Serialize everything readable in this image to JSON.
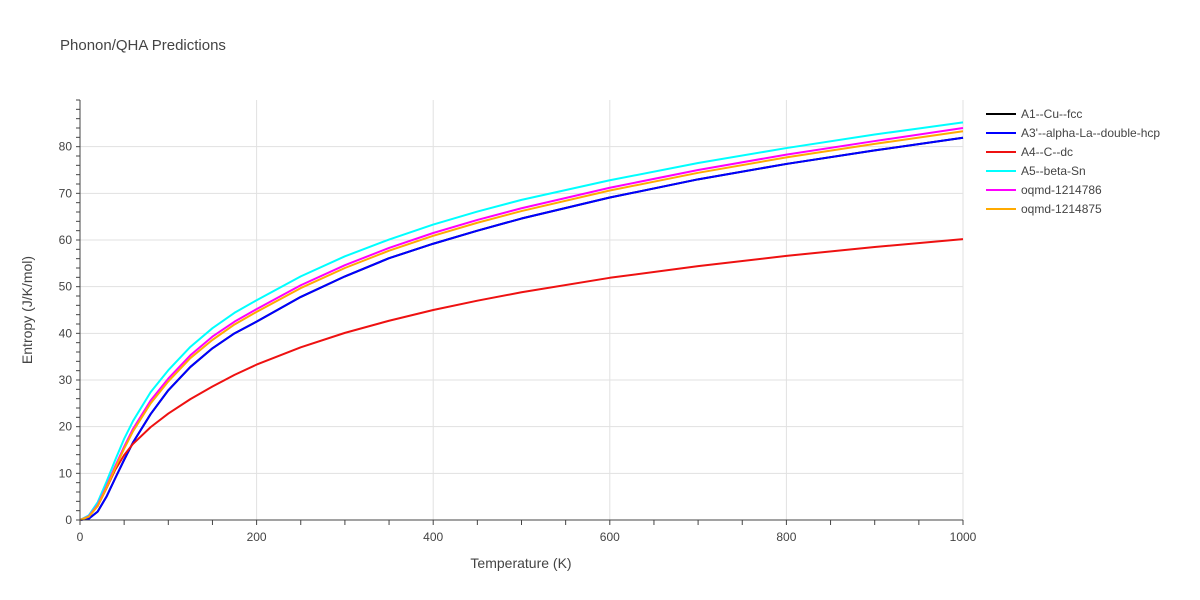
{
  "chart_data": {
    "type": "line",
    "title": "Phonon/QHA Predictions",
    "xlabel": "Temperature (K)",
    "ylabel": "Entropy (J/K/mol)",
    "xlim": [
      0,
      1000
    ],
    "ylim": [
      0,
      90
    ],
    "xticks": [
      0,
      200,
      400,
      600,
      800,
      1000
    ],
    "yticks": [
      0,
      10,
      20,
      30,
      40,
      50,
      60,
      70,
      80
    ],
    "grid": true,
    "legend_position": "right",
    "series": [
      {
        "name": "A1--Cu--fcc",
        "color": "#000000",
        "x": [
          0,
          10,
          20,
          30,
          40,
          50,
          60,
          80,
          100,
          125,
          150,
          175,
          200,
          250,
          300,
          350,
          400,
          450,
          500,
          600,
          700,
          800,
          900,
          1000
        ],
        "y": [
          0,
          0.3,
          1.8,
          5.0,
          9.0,
          12.9,
          16.6,
          22.7,
          27.8,
          32.8,
          36.8,
          40.0,
          42.5,
          47.8,
          52.2,
          56.1,
          59.2,
          62.0,
          64.6,
          69.1,
          73.0,
          76.3,
          79.2,
          81.9
        ]
      },
      {
        "name": "A3'--alpha-La--double-hcp",
        "color": "#0000ff",
        "x": [
          0,
          10,
          20,
          30,
          40,
          50,
          60,
          80,
          100,
          125,
          150,
          175,
          200,
          250,
          300,
          350,
          400,
          450,
          500,
          600,
          700,
          800,
          900,
          1000
        ],
        "y": [
          0,
          0.3,
          1.8,
          5.0,
          9.0,
          12.9,
          16.6,
          22.7,
          27.8,
          32.8,
          36.8,
          40.0,
          42.5,
          47.8,
          52.2,
          56.1,
          59.2,
          62.0,
          64.6,
          69.1,
          73.0,
          76.3,
          79.2,
          81.9
        ]
      },
      {
        "name": "A4--C--dc",
        "color": "#ee1111",
        "x": [
          0,
          10,
          20,
          30,
          40,
          50,
          60,
          80,
          100,
          125,
          150,
          175,
          200,
          250,
          300,
          350,
          400,
          450,
          500,
          600,
          700,
          800,
          900,
          1000
        ],
        "y": [
          0,
          0.8,
          3.0,
          6.8,
          10.8,
          13.9,
          16.3,
          19.9,
          22.8,
          25.9,
          28.6,
          31.1,
          33.3,
          37.0,
          40.1,
          42.7,
          45.0,
          47.0,
          48.8,
          51.9,
          54.4,
          56.6,
          58.5,
          60.2
        ]
      },
      {
        "name": "A5--beta-Sn",
        "color": "#00ffff",
        "x": [
          0,
          10,
          20,
          30,
          40,
          50,
          60,
          80,
          100,
          125,
          150,
          175,
          200,
          250,
          300,
          350,
          400,
          450,
          500,
          600,
          700,
          800,
          900,
          1000
        ],
        "y": [
          0,
          1.0,
          3.8,
          8.2,
          12.9,
          17.4,
          21.2,
          27.4,
          32.1,
          37.1,
          41.1,
          44.4,
          47.1,
          52.2,
          56.5,
          60.1,
          63.3,
          66.1,
          68.6,
          72.8,
          76.5,
          79.7,
          82.6,
          85.2
        ]
      },
      {
        "name": "oqmd-1214786",
        "color": "#ff00ff",
        "x": [
          0,
          10,
          20,
          30,
          40,
          50,
          60,
          80,
          100,
          125,
          150,
          175,
          200,
          250,
          300,
          350,
          400,
          450,
          500,
          600,
          700,
          800,
          900,
          1000
        ],
        "y": [
          0,
          0.8,
          3.2,
          7.2,
          11.6,
          15.7,
          19.5,
          25.6,
          30.3,
          35.3,
          39.3,
          42.5,
          45.2,
          50.3,
          54.6,
          58.3,
          61.5,
          64.3,
          66.8,
          71.2,
          75.0,
          78.3,
          81.2,
          84.0
        ]
      },
      {
        "name": "oqmd-1214875",
        "color": "#ffaa00",
        "x": [
          0,
          10,
          20,
          30,
          40,
          50,
          60,
          80,
          100,
          125,
          150,
          175,
          200,
          250,
          300,
          350,
          400,
          450,
          500,
          600,
          700,
          800,
          900,
          1000
        ],
        "y": [
          0,
          0.7,
          3.0,
          6.9,
          11.2,
          15.3,
          19.0,
          25.0,
          29.7,
          34.7,
          38.6,
          41.9,
          44.6,
          49.7,
          54.0,
          57.7,
          60.9,
          63.7,
          66.2,
          70.6,
          74.4,
          77.7,
          80.6,
          83.3
        ]
      }
    ]
  }
}
